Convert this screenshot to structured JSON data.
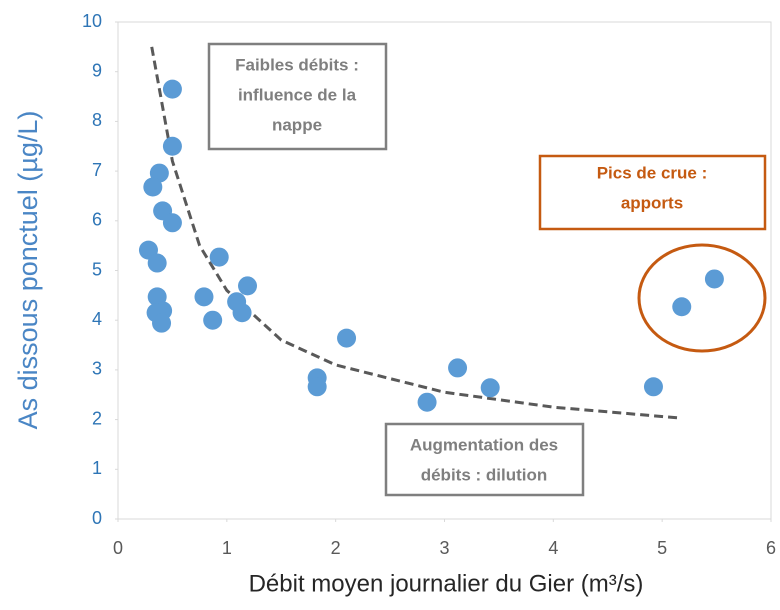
{
  "chart_data": {
    "type": "scatter",
    "xlabel": "Débit moyen journalier du Gier  (m³/s)",
    "ylabel": "As dissous ponctuel (µg/L)",
    "xlim": [
      0,
      6
    ],
    "xticks": [
      0,
      1,
      2,
      3,
      4,
      5,
      6
    ],
    "ylim": [
      0,
      10
    ],
    "yticks": [
      0,
      1,
      2,
      3,
      4,
      5,
      6,
      7,
      8,
      9,
      10
    ],
    "series": [
      {
        "color": "#5b9bd5",
        "x": [
          0.5,
          0.5,
          0.38,
          0.32,
          0.41,
          0.5,
          0.28,
          0.36,
          0.93,
          1.19,
          0.79,
          0.36,
          1.09,
          0.41,
          0.35,
          1.14,
          0.4,
          0.87,
          2.1,
          1.83,
          1.83,
          3.12,
          3.42,
          2.84,
          4.92,
          5.18,
          5.48
        ],
        "values": [
          8.65,
          7.5,
          6.96,
          6.68,
          6.2,
          5.96,
          5.41,
          5.15,
          5.27,
          4.69,
          4.47,
          4.47,
          4.37,
          4.19,
          4.15,
          4.15,
          3.94,
          4.0,
          3.64,
          2.84,
          2.66,
          3.04,
          2.64,
          2.35,
          2.66,
          4.27,
          4.83
        ]
      }
    ],
    "trend_line": {
      "color": "#595959",
      "x": [
        0.31,
        0.5,
        0.75,
        1,
        1.5,
        2,
        3,
        4,
        5.17
      ],
      "values": [
        9.5,
        7.2,
        5.5,
        4.6,
        3.6,
        3.1,
        2.55,
        2.25,
        2.03
      ]
    },
    "annotations": [
      {
        "lines": [
          "Faibles débits :",
          "influence de la",
          "nappe"
        ],
        "color": "#7f7f7f"
      },
      {
        "lines": [
          "Pics de crue :",
          "apports"
        ],
        "color": "#c55a11"
      },
      {
        "lines": [
          "Augmentation des",
          "débits : dilution"
        ],
        "color": "#7f7f7f"
      }
    ]
  }
}
